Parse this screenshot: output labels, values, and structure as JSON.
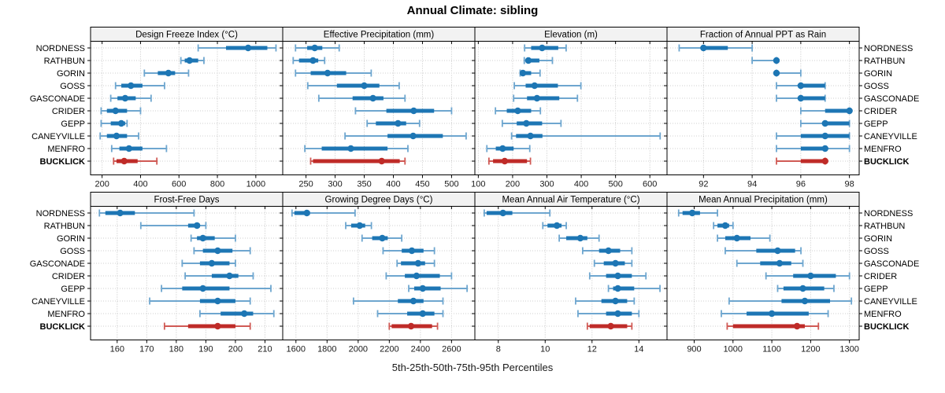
{
  "title": "Annual Climate: sibling",
  "caption": "5th-25th-50th-75th-95th Percentiles",
  "highlight": "BUCKLICK",
  "colors": {
    "blue_main": "#1d76b4",
    "blue_whisker": "#6ea6cf",
    "red_main": "#bf2b28",
    "red_whisker": "#d05a55",
    "header_bg": "#f2f2f2",
    "panel_border": "#000000",
    "grid_v": "#c4c4c4",
    "grid_h": "#cfcfcf",
    "axis_text": "#1a1a1a",
    "label_text": "#000000"
  },
  "chart_data": {
    "type": "scatter",
    "subtype": "percentile-interval-dotplot",
    "percentiles": [
      5,
      25,
      50,
      75,
      95
    ],
    "legend": "none",
    "grid": "dotted",
    "categories": [
      "NORDNESS",
      "RATHBUN",
      "GORIN",
      "GOSS",
      "GASCONADE",
      "CRIDER",
      "GEPP",
      "CANEYVILLE",
      "MENFRO",
      "BUCKLICK"
    ],
    "panels": [
      {
        "title": "Design Freeze Index (°C)",
        "ticks": [
          200,
          400,
          600,
          800,
          1000
        ],
        "range": [
          140,
          1140
        ],
        "series": [
          {
            "name": "NORDNESS",
            "values": [
              700,
              845,
              960,
              1060,
              1105
            ]
          },
          {
            "name": "RATHBUN",
            "values": [
              610,
              630,
              655,
              700,
              730
            ]
          },
          {
            "name": "GORIN",
            "values": [
              420,
              490,
              545,
              580,
              650
            ]
          },
          {
            "name": "GOSS",
            "values": [
              270,
              300,
              350,
              410,
              525
            ]
          },
          {
            "name": "GASCONADE",
            "values": [
              245,
              280,
              320,
              375,
              455
            ]
          },
          {
            "name": "CRIDER",
            "values": [
              195,
              225,
              270,
              330,
              400
            ]
          },
          {
            "name": "GEPP",
            "values": [
              195,
              245,
              300,
              320,
              330
            ]
          },
          {
            "name": "CANEYVILLE",
            "values": [
              190,
              225,
              275,
              330,
              390
            ]
          },
          {
            "name": "MENFRO",
            "values": [
              250,
              290,
              340,
              410,
              535
            ]
          },
          {
            "name": "BUCKLICK",
            "values": [
              260,
              275,
              315,
              385,
              485
            ]
          }
        ]
      },
      {
        "title": "Effective Precipitation (mm)",
        "ticks": [
          250,
          300,
          350,
          400,
          450,
          500
        ],
        "range": [
          210,
          540
        ],
        "series": [
          {
            "name": "NORDNESS",
            "values": [
              232,
              252,
              265,
              278,
              307
            ]
          },
          {
            "name": "RATHBUN",
            "values": [
              228,
              238,
              262,
              271,
              282
            ]
          },
          {
            "name": "GORIN",
            "values": [
              232,
              258,
              287,
              319,
              362
            ]
          },
          {
            "name": "GOSS",
            "values": [
              253,
              303,
              350,
              376,
              410
            ]
          },
          {
            "name": "GASCONADE",
            "values": [
              272,
              330,
              365,
              383,
              420
            ]
          },
          {
            "name": "CRIDER",
            "values": [
              335,
              388,
              435,
              470,
              500
            ]
          },
          {
            "name": "GEPP",
            "values": [
              355,
              370,
              408,
              422,
              445
            ]
          },
          {
            "name": "CANEYVILLE",
            "values": [
              317,
              390,
              434,
              485,
              525
            ]
          },
          {
            "name": "MENFRO",
            "values": [
              248,
              277,
              327,
              390,
              425
            ]
          },
          {
            "name": "BUCKLICK",
            "values": [
              258,
              262,
              380,
              411,
              420
            ]
          }
        ]
      },
      {
        "title": "Elevation (m)",
        "ticks": [
          100,
          200,
          300,
          400,
          500,
          600
        ],
        "range": [
          90,
          650
        ],
        "series": [
          {
            "name": "NORDNESS",
            "values": [
              235,
              254,
              286,
              333,
              356
            ]
          },
          {
            "name": "RATHBUN",
            "values": [
              234,
              238,
              246,
              278,
              316
            ]
          },
          {
            "name": "GORIN",
            "values": [
              222,
              225,
              230,
              254,
              280
            ]
          },
          {
            "name": "GOSS",
            "values": [
              205,
              238,
              264,
              332,
              399
            ]
          },
          {
            "name": "GASCONADE",
            "values": [
              203,
              242,
              271,
              336,
              389
            ]
          },
          {
            "name": "CRIDER",
            "values": [
              150,
              183,
              215,
              254,
              281
            ]
          },
          {
            "name": "GEPP",
            "values": [
              170,
              212,
              240,
              286,
              341
            ]
          },
          {
            "name": "CANEYVILLE",
            "values": [
              197,
              210,
              252,
              287,
              630
            ]
          },
          {
            "name": "MENFRO",
            "values": [
              125,
              151,
              171,
              203,
              250
            ]
          },
          {
            "name": "BUCKLICK",
            "values": [
              131,
              143,
              177,
              242,
              252
            ]
          }
        ]
      },
      {
        "title": "Fraction of Annual PPT as Rain",
        "ticks": [
          92,
          94,
          96,
          98
        ],
        "range": [
          90.5,
          98.4
        ],
        "series": [
          {
            "name": "NORDNESS",
            "values": [
              91,
              92,
              92,
              93,
              94
            ]
          },
          {
            "name": "RATHBUN",
            "values": [
              94,
              95,
              95,
              95,
              95
            ]
          },
          {
            "name": "GORIN",
            "values": [
              95,
              95,
              95,
              95,
              96
            ]
          },
          {
            "name": "GOSS",
            "values": [
              95,
              96,
              96,
              97,
              97
            ]
          },
          {
            "name": "GASCONADE",
            "values": [
              95,
              96,
              96,
              97,
              97
            ]
          },
          {
            "name": "CRIDER",
            "values": [
              96,
              97,
              98,
              98,
              98
            ]
          },
          {
            "name": "GEPP",
            "values": [
              96,
              97,
              97,
              98,
              98
            ]
          },
          {
            "name": "CANEYVILLE",
            "values": [
              95,
              96,
              97,
              98,
              98
            ]
          },
          {
            "name": "MENFRO",
            "values": [
              95,
              96,
              97,
              97,
              98
            ]
          },
          {
            "name": "BUCKLICK",
            "values": [
              95,
              96,
              97,
              97,
              97
            ]
          }
        ]
      },
      {
        "title": "Frost-Free Days",
        "ticks": [
          160,
          170,
          180,
          190,
          200,
          210
        ],
        "range": [
          151,
          216
        ],
        "series": [
          {
            "name": "NORDNESS",
            "values": [
              154,
              156,
              161,
              166,
              186
            ]
          },
          {
            "name": "RATHBUN",
            "values": [
              168,
              184,
              187,
              188,
              190
            ]
          },
          {
            "name": "GORIN",
            "values": [
              185,
              187,
              189,
              193,
              200
            ]
          },
          {
            "name": "GOSS",
            "values": [
              186,
              189,
              194,
              199,
              205
            ]
          },
          {
            "name": "GASCONADE",
            "values": [
              182,
              188,
              192,
              198,
              200
            ]
          },
          {
            "name": "CRIDER",
            "values": [
              183,
              192,
              198,
              201,
              206
            ]
          },
          {
            "name": "GEPP",
            "values": [
              175,
              182,
              189,
              198,
              212
            ]
          },
          {
            "name": "CANEYVILLE",
            "values": [
              171,
              188,
              194,
              200,
              205
            ]
          },
          {
            "name": "MENFRO",
            "values": [
              188,
              195,
              203,
              206,
              213
            ]
          },
          {
            "name": "BUCKLICK",
            "values": [
              176,
              184,
              194,
              200,
              205
            ]
          }
        ]
      },
      {
        "title": "Growing Degree Days (°C)",
        "ticks": [
          1600,
          1800,
          2000,
          2200,
          2400,
          2600
        ],
        "range": [
          1515,
          2750
        ],
        "series": [
          {
            "name": "NORDNESS",
            "values": [
              1575,
              1590,
              1670,
              1690,
              1980
            ]
          },
          {
            "name": "RATHBUN",
            "values": [
              1920,
              1955,
              2010,
              2045,
              2085
            ]
          },
          {
            "name": "GORIN",
            "values": [
              2025,
              2090,
              2155,
              2190,
              2280
            ]
          },
          {
            "name": "GOSS",
            "values": [
              2160,
              2280,
              2345,
              2420,
              2490
            ]
          },
          {
            "name": "GASCONADE",
            "values": [
              2250,
              2275,
              2385,
              2430,
              2490
            ]
          },
          {
            "name": "CRIDER",
            "values": [
              2180,
              2300,
              2375,
              2525,
              2600
            ]
          },
          {
            "name": "GEPP",
            "values": [
              2325,
              2360,
              2415,
              2530,
              2700
            ]
          },
          {
            "name": "CANEYVILLE",
            "values": [
              1970,
              2255,
              2355,
              2420,
              2545
            ]
          },
          {
            "name": "MENFRO",
            "values": [
              2125,
              2315,
              2415,
              2490,
              2545
            ]
          },
          {
            "name": "BUCKLICK",
            "values": [
              2200,
              2215,
              2340,
              2475,
              2510
            ]
          }
        ]
      },
      {
        "title": "Mean Annual Air Temperature (°C)",
        "ticks": [
          8,
          10,
          12,
          14
        ],
        "range": [
          7.0,
          15.2
        ],
        "series": [
          {
            "name": "NORDNESS",
            "values": [
              7.4,
              7.5,
              8.2,
              8.6,
              10.2
            ]
          },
          {
            "name": "RATHBUN",
            "values": [
              9.9,
              10.1,
              10.5,
              10.7,
              10.9
            ]
          },
          {
            "name": "GORIN",
            "values": [
              10.6,
              10.9,
              11.5,
              11.8,
              12.3
            ]
          },
          {
            "name": "GOSS",
            "values": [
              11.6,
              12.3,
              12.7,
              13.2,
              13.7
            ]
          },
          {
            "name": "GASCONADE",
            "values": [
              12.1,
              12.5,
              13.0,
              13.4,
              13.7
            ]
          },
          {
            "name": "CRIDER",
            "values": [
              11.9,
              12.6,
              13.1,
              13.7,
              14.3
            ]
          },
          {
            "name": "GEPP",
            "values": [
              12.7,
              12.9,
              13.1,
              13.8,
              14.9
            ]
          },
          {
            "name": "CANEYVILLE",
            "values": [
              11.3,
              12.4,
              13.0,
              13.5,
              13.8
            ]
          },
          {
            "name": "MENFRO",
            "values": [
              11.4,
              12.6,
              13.1,
              13.7,
              14.0
            ]
          },
          {
            "name": "BUCKLICK",
            "values": [
              11.8,
              11.9,
              12.8,
              13.5,
              13.7
            ]
          }
        ]
      },
      {
        "title": "Mean Annual Precipitation (mm)",
        "ticks": [
          900,
          1000,
          1100,
          1200,
          1300
        ],
        "range": [
          830,
          1325
        ],
        "series": [
          {
            "name": "NORDNESS",
            "values": [
              860,
              870,
              895,
              915,
              960
            ]
          },
          {
            "name": "RATHBUN",
            "values": [
              950,
              960,
              980,
              990,
              1000
            ]
          },
          {
            "name": "GORIN",
            "values": [
              960,
              980,
              1010,
              1045,
              1095
            ]
          },
          {
            "name": "GOSS",
            "values": [
              980,
              1060,
              1115,
              1160,
              1175
            ]
          },
          {
            "name": "GASCONADE",
            "values": [
              1010,
              1070,
              1120,
              1150,
              1180
            ]
          },
          {
            "name": "CRIDER",
            "values": [
              1085,
              1155,
              1200,
              1265,
              1300
            ]
          },
          {
            "name": "GEPP",
            "values": [
              1115,
              1130,
              1180,
              1235,
              1260
            ]
          },
          {
            "name": "CANEYVILLE",
            "values": [
              990,
              1125,
              1185,
              1250,
              1305
            ]
          },
          {
            "name": "MENFRO",
            "values": [
              970,
              1035,
              1100,
              1195,
              1245
            ]
          },
          {
            "name": "BUCKLICK",
            "values": [
              985,
              1000,
              1165,
              1185,
              1220
            ]
          }
        ]
      }
    ]
  }
}
